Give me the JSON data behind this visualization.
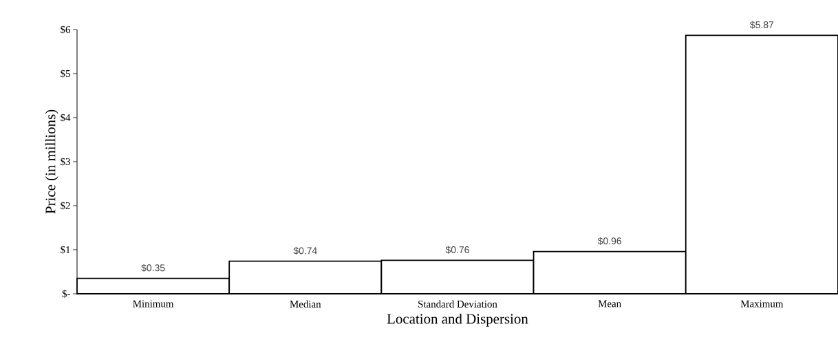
{
  "chart_data": {
    "type": "bar",
    "xlabel": "Location and Dispersion",
    "ylabel": "Price (in millions)",
    "categories": [
      "Minimum",
      "Median",
      "Standard Deviation",
      "Mean",
      "Maximum"
    ],
    "values": [
      0.35,
      0.74,
      0.76,
      0.96,
      5.87
    ],
    "value_labels": [
      "$0.35",
      "$0.74",
      "$0.76",
      "$0.96",
      "$5.87"
    ],
    "color": "#ffffff",
    "ylim": [
      0,
      6
    ],
    "yticks": [
      {
        "value": 0,
        "label": "$-"
      },
      {
        "value": 1,
        "label": "$1"
      },
      {
        "value": 2,
        "label": "$2"
      },
      {
        "value": 3,
        "label": "$3"
      },
      {
        "value": 4,
        "label": "$4"
      },
      {
        "value": 5,
        "label": "$5"
      },
      {
        "value": 6,
        "label": "$6"
      }
    ]
  }
}
